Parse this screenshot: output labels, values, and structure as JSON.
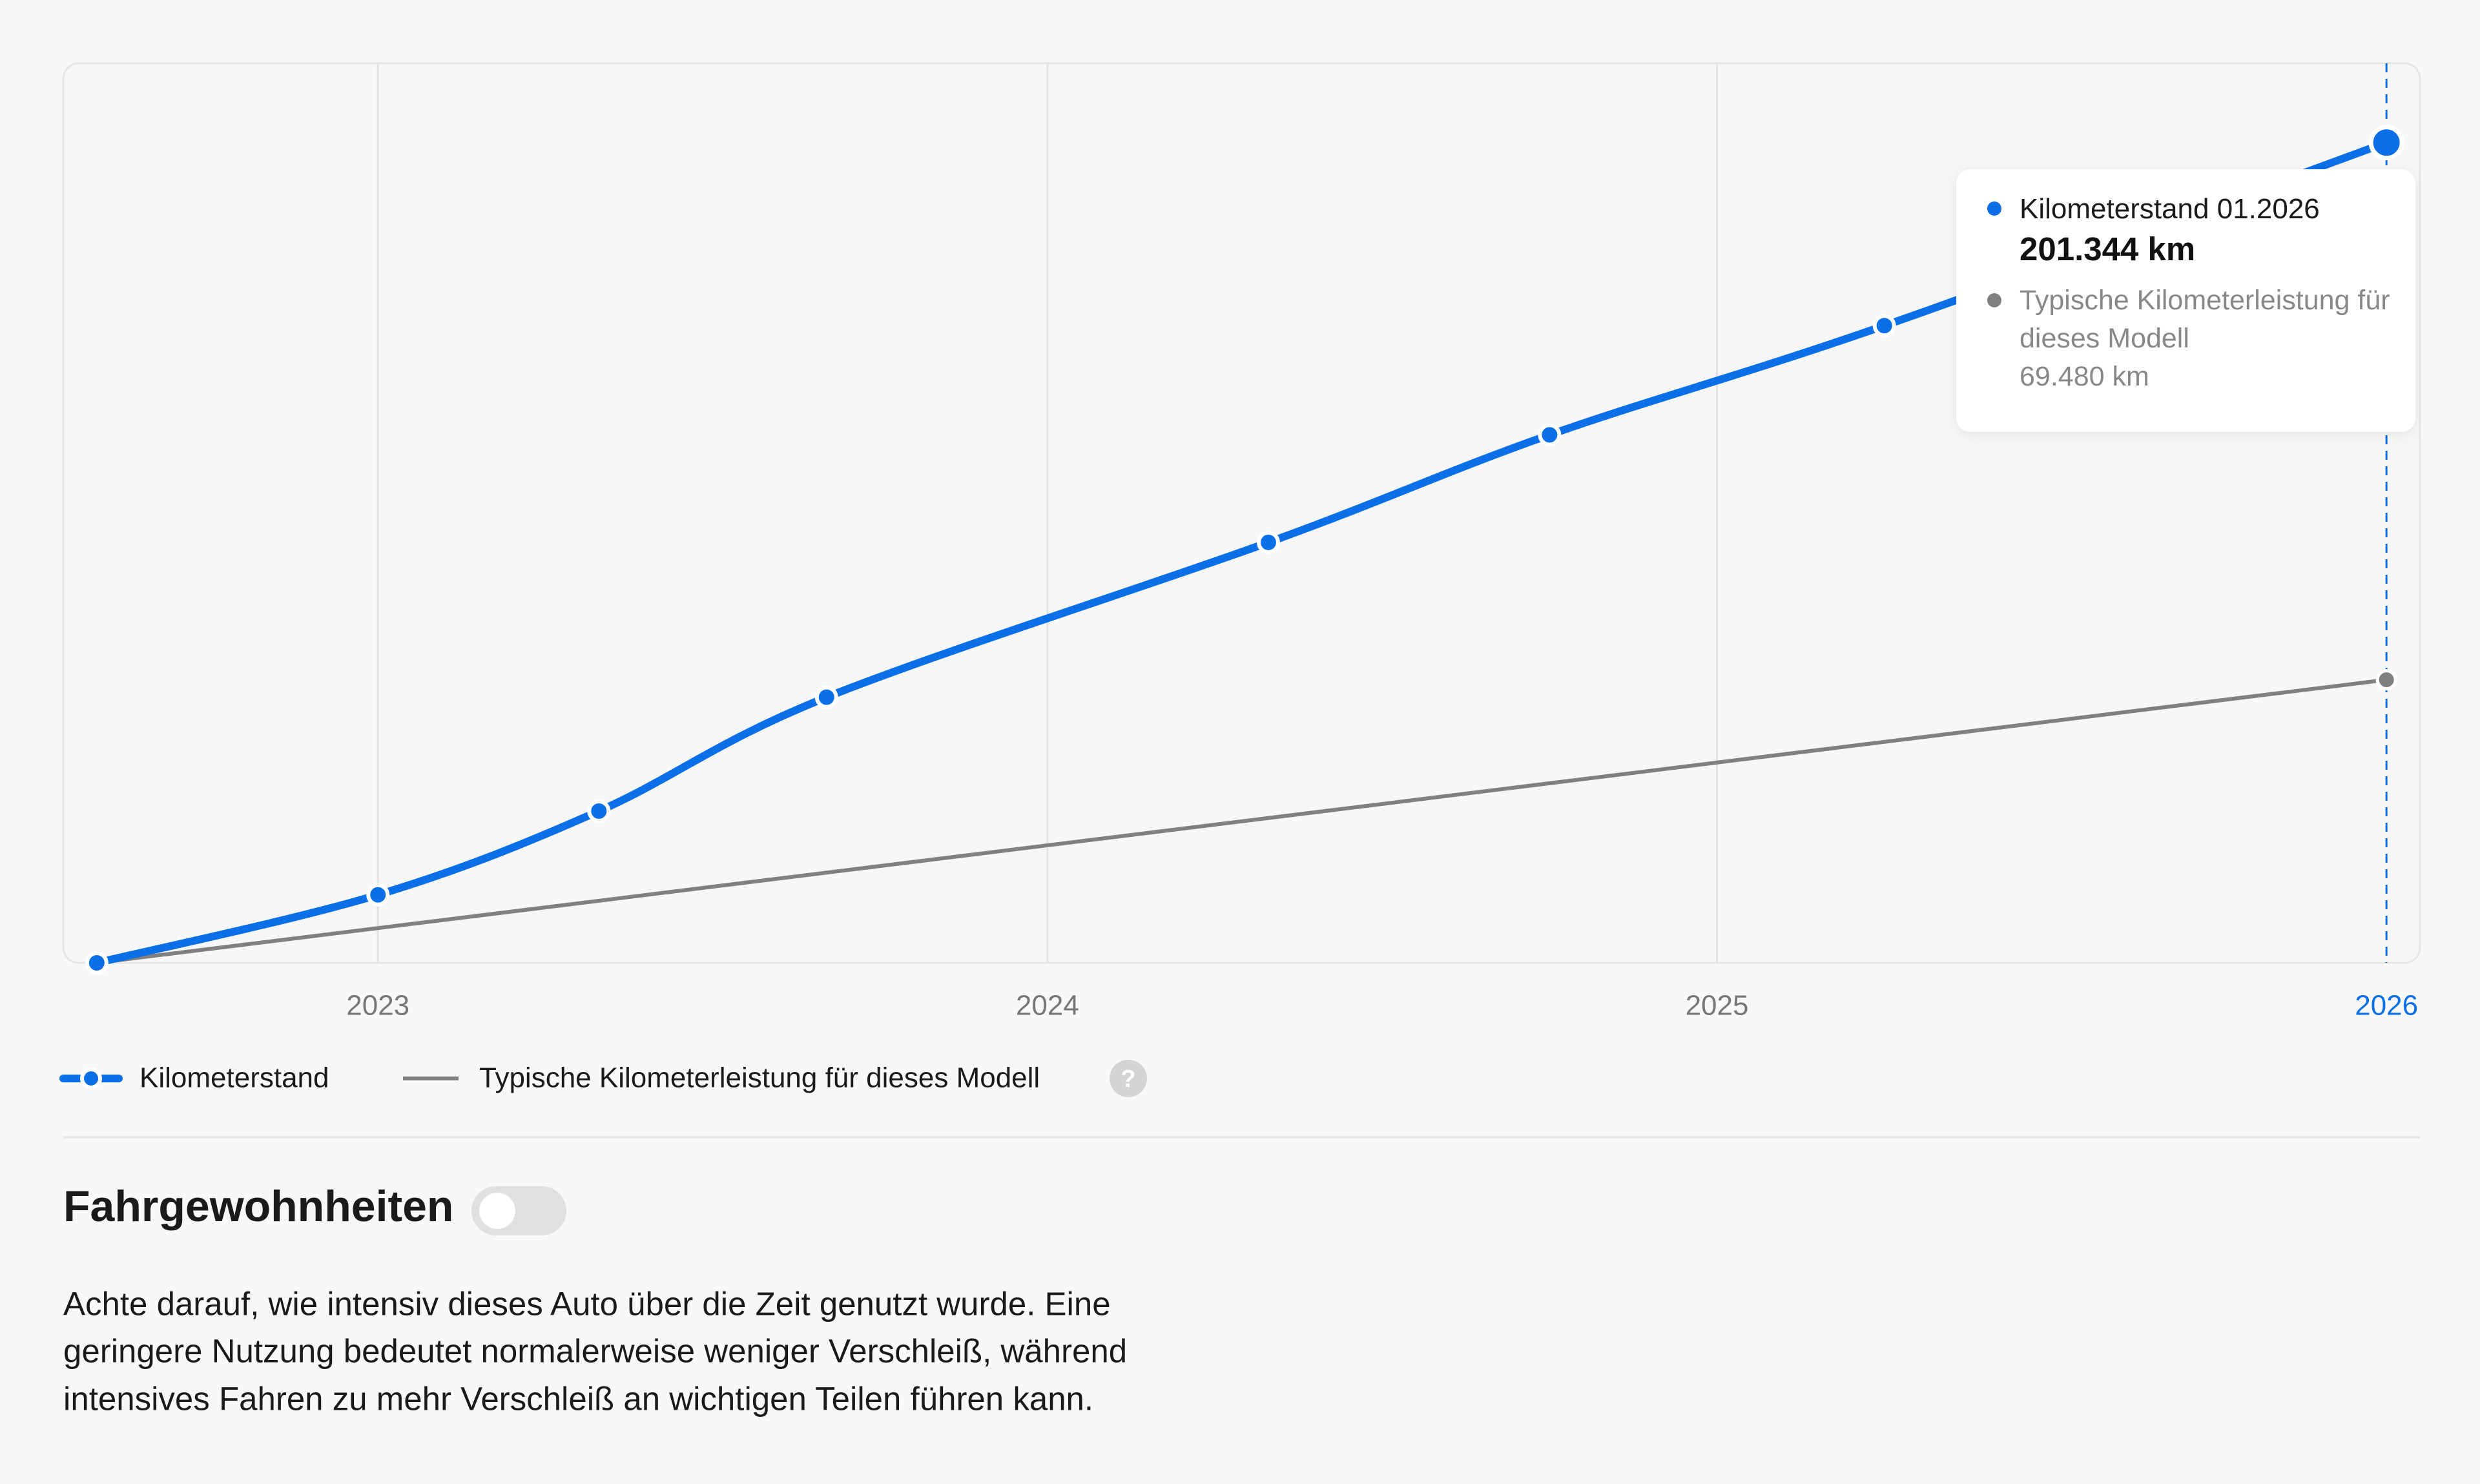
{
  "chart_data": {
    "type": "line",
    "xlim": [
      2022.53,
      2026.05
    ],
    "ylim": [
      0,
      220800
    ],
    "xticks": [
      2023,
      2024,
      2025,
      2026
    ],
    "grid": true,
    "hover_x": 2026,
    "tooltip_date": "01.2026",
    "legend_help": "?",
    "series": [
      {
        "name": "Kilometerstand",
        "color": "#0b6fe8",
        "x": [
          2022.58,
          2023.0,
          2023.33,
          2023.67,
          2024.33,
          2024.75,
          2025.25,
          2026.0
        ],
        "values": [
          0,
          16700,
          37250,
          65200,
          103200,
          129600,
          156400,
          201344
        ],
        "value_labels": [
          null,
          null,
          null,
          null,
          null,
          null,
          null,
          "201.344 km"
        ]
      },
      {
        "name": "Typische Kilometerleistung für dieses Modell",
        "color": "#808080",
        "x": [
          2022.58,
          2026.0
        ],
        "values": [
          0,
          69480
        ],
        "value_labels": [
          null,
          "69.480 km"
        ]
      }
    ]
  },
  "section": {
    "title": "Fahrgewohnheiten",
    "toggle_on": false,
    "description": [
      "Achte darauf, wie intensiv dieses Auto über die Zeit genutzt wurde. Eine",
      "geringere Nutzung bedeutet normalerweise weniger Verschleiß, während",
      "intensives Fahren zu mehr Verschleiß an wichtigen Teilen führen kann."
    ]
  }
}
